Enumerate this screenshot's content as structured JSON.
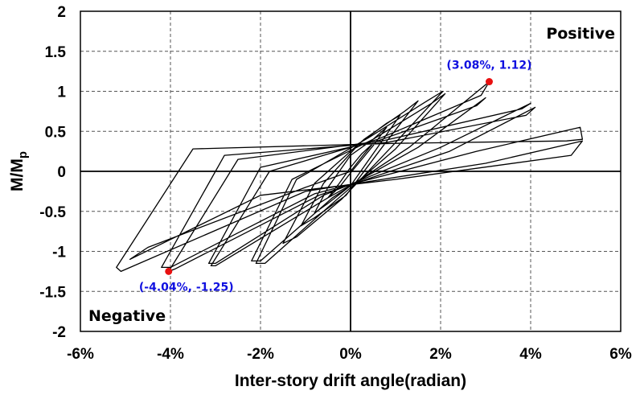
{
  "chart_data": {
    "type": "line",
    "xlabel": "Inter-story drift angle(radian)",
    "ylabel": "M/M",
    "ylabel_sub": "p",
    "xlim": [
      -6,
      6
    ],
    "ylim": [
      -2,
      2
    ],
    "x_ticks": [
      -6,
      -4,
      -2,
      0,
      2,
      4,
      6
    ],
    "x_tick_labels": [
      "-6%",
      "-4%",
      "-2%",
      "0%",
      "2%",
      "4%",
      "6%"
    ],
    "y_ticks": [
      -2,
      -1.5,
      -1,
      -0.5,
      0,
      0.5,
      1,
      1.5,
      2
    ],
    "y_tick_labels": [
      "-2",
      "-1.5",
      "-1",
      "-0.5",
      "0",
      "0.5",
      "1",
      "1.5",
      "2"
    ],
    "grid": "dashed",
    "corner_labels": {
      "positive": "Positive",
      "negative": "Negative"
    },
    "line_color": "#000000",
    "series": [
      {
        "values": [
          [
            0,
            0
          ],
          [
            0.25,
            0.18
          ],
          [
            0.5,
            0.35
          ],
          [
            0.25,
            0.22
          ],
          [
            0,
            0.05
          ],
          [
            -0.25,
            -0.15
          ],
          [
            -0.5,
            -0.33
          ],
          [
            -0.25,
            -0.2
          ],
          [
            0,
            -0.02
          ],
          [
            0.5,
            0.32
          ],
          [
            0.8,
            0.55
          ],
          [
            0.5,
            0.4
          ],
          [
            0,
            0.2
          ],
          [
            -0.5,
            -0.2
          ],
          [
            -0.8,
            -0.52
          ],
          [
            -0.5,
            -0.4
          ],
          [
            0,
            -0.18
          ],
          [
            0.6,
            0.3
          ],
          [
            1.1,
            0.7
          ],
          [
            0.8,
            0.6
          ],
          [
            0.2,
            0.35
          ],
          [
            -0.6,
            -0.15
          ],
          [
            -1.1,
            -0.68
          ],
          [
            -0.8,
            -0.58
          ],
          [
            -0.1,
            -0.3
          ],
          [
            0.7,
            0.3
          ],
          [
            1.5,
            0.88
          ],
          [
            1.2,
            0.75
          ],
          [
            0.3,
            0.4
          ],
          [
            -0.8,
            -0.15
          ],
          [
            -1.5,
            -0.9
          ],
          [
            -1.2,
            -0.82
          ],
          [
            -0.2,
            -0.35
          ],
          [
            0.9,
            0.3
          ],
          [
            2.05,
            1.0
          ],
          [
            1.7,
            0.88
          ],
          [
            0.4,
            0.42
          ],
          [
            -1.2,
            -0.1
          ],
          [
            -2.1,
            -1.15
          ],
          [
            -1.9,
            -1.15
          ],
          [
            -0.3,
            -0.35
          ],
          [
            1.0,
            0.28
          ],
          [
            2.1,
            0.97
          ],
          [
            1.8,
            0.85
          ],
          [
            0.5,
            0.4
          ],
          [
            -1.3,
            -0.1
          ],
          [
            -2.2,
            -1.12
          ],
          [
            -2.0,
            -1.12
          ],
          [
            -0.4,
            -0.33
          ],
          [
            1.3,
            0.3
          ],
          [
            3.08,
            1.12
          ],
          [
            2.9,
            0.95
          ],
          [
            0.6,
            0.4
          ],
          [
            -1.8,
            0.0
          ],
          [
            -3.1,
            -1.18
          ],
          [
            -3.0,
            -1.18
          ],
          [
            -0.5,
            -0.33
          ],
          [
            1.5,
            0.3
          ],
          [
            3.0,
            0.92
          ],
          [
            2.8,
            0.82
          ],
          [
            0.6,
            0.38
          ],
          [
            -2.0,
            0.05
          ],
          [
            -3.15,
            -1.15
          ],
          [
            -3.0,
            -1.15
          ],
          [
            -0.6,
            -0.3
          ],
          [
            2.0,
            0.3
          ],
          [
            4.0,
            0.85
          ],
          [
            3.8,
            0.78
          ],
          [
            0.7,
            0.38
          ],
          [
            -2.5,
            0.15
          ],
          [
            -4.04,
            -1.25
          ],
          [
            -3.9,
            -1.22
          ],
          [
            -0.7,
            -0.3
          ],
          [
            2.2,
            0.25
          ],
          [
            4.1,
            0.8
          ],
          [
            3.9,
            0.7
          ],
          [
            0.8,
            0.36
          ],
          [
            -2.8,
            0.2
          ],
          [
            -4.2,
            -1.2
          ],
          [
            -4.0,
            -1.2
          ],
          [
            -0.8,
            -0.28
          ],
          [
            2.8,
            0.25
          ],
          [
            5.1,
            0.55
          ],
          [
            5.15,
            0.4
          ],
          [
            4.8,
            0.38
          ],
          [
            1.0,
            0.35
          ],
          [
            -3.5,
            0.28
          ],
          [
            -5.2,
            -1.2
          ],
          [
            -5.1,
            -1.25
          ],
          [
            -1.0,
            -0.25
          ],
          [
            3.0,
            0.1
          ],
          [
            5.15,
            0.38
          ],
          [
            4.9,
            0.2
          ],
          [
            1.0,
            -0.1
          ],
          [
            -2.0,
            -0.3
          ],
          [
            -4.9,
            -1.1
          ],
          [
            -4.5,
            -0.95
          ],
          [
            -1.0,
            -0.2
          ],
          [
            0,
            0
          ]
        ]
      }
    ],
    "points": [
      {
        "x": 3.08,
        "y": 1.12,
        "label": "(3.08%, 1.12)",
        "color": "#e81010"
      },
      {
        "x": -4.04,
        "y": -1.25,
        "label": "(-4.04%, -1.25)",
        "color": "#e81010"
      }
    ]
  }
}
